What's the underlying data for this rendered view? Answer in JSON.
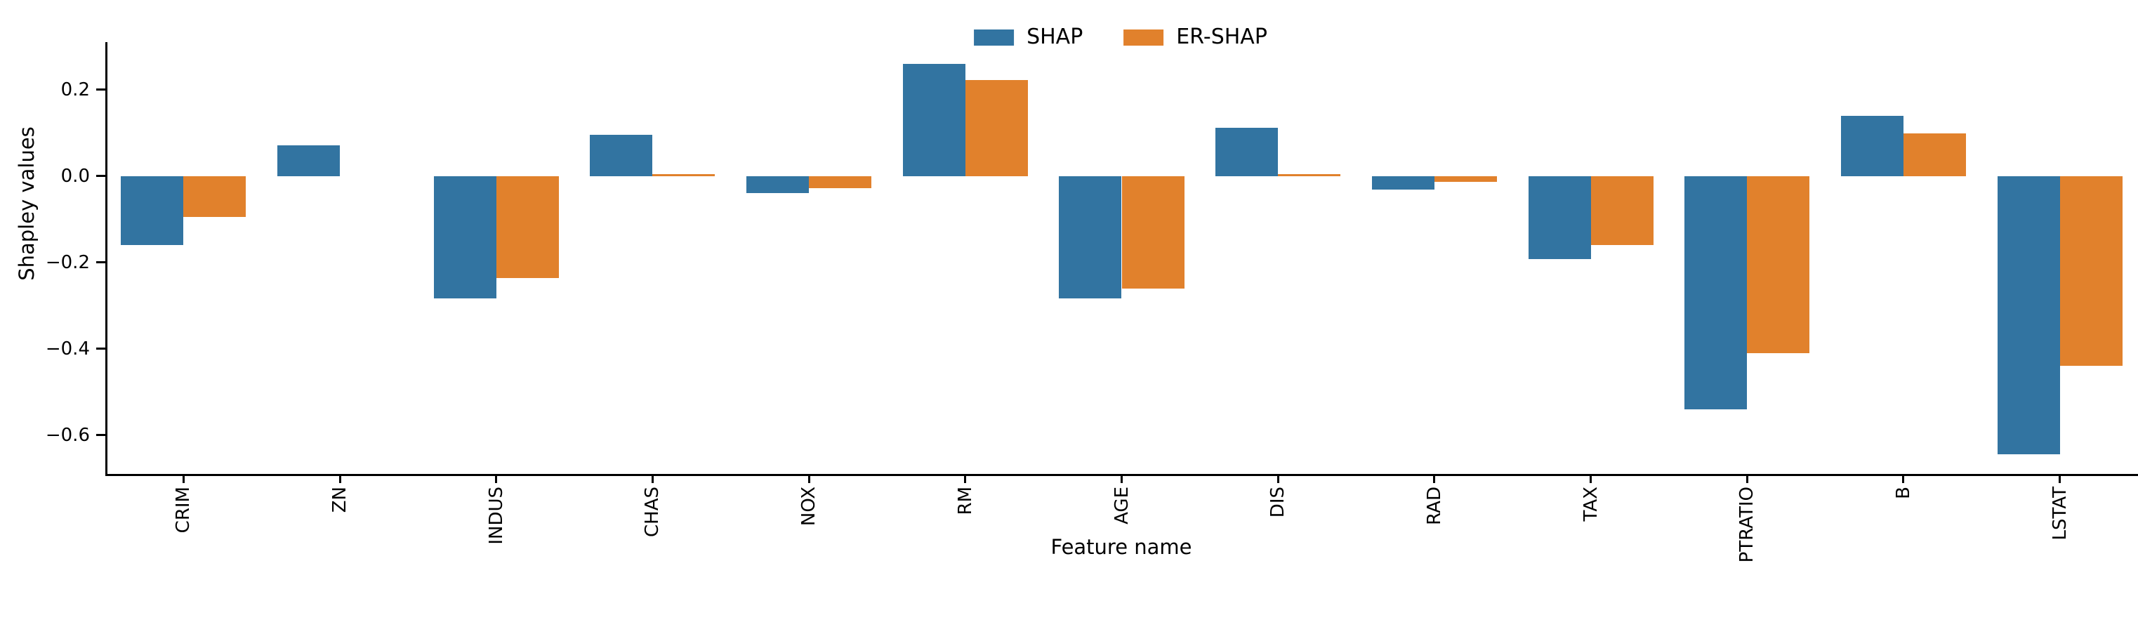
{
  "legend": {
    "items": [
      {
        "label": "SHAP",
        "color": "#3274a1"
      },
      {
        "label": "ER-SHAP",
        "color": "#e1812c"
      }
    ]
  },
  "axes": {
    "ylabel": "Shapley values",
    "xlabel": "Feature name",
    "ytick_labels": [
      "0.2",
      "0.0",
      "−0.2",
      "−0.4",
      "−0.6"
    ]
  },
  "chart_data": {
    "type": "bar",
    "title": "",
    "xlabel": "Feature name",
    "ylabel": "Shapley values",
    "categories": [
      "CRIM",
      "ZN",
      "INDUS",
      "CHAS",
      "NOX",
      "RM",
      "AGE",
      "DIS",
      "RAD",
      "TAX",
      "PTRATIO",
      "B",
      "LSTAT"
    ],
    "series": [
      {
        "name": "SHAP",
        "color": "#3274a1",
        "values": [
          -0.16,
          0.071,
          -0.283,
          0.096,
          -0.04,
          0.26,
          -0.284,
          0.111,
          -0.031,
          -0.192,
          -0.54,
          0.139,
          -0.645
        ]
      },
      {
        "name": "ER-SHAP",
        "color": "#e1812c",
        "values": [
          -0.095,
          0.0,
          -0.236,
          0.004,
          -0.028,
          0.222,
          -0.26,
          0.005,
          -0.013,
          -0.16,
          -0.41,
          0.098,
          -0.44
        ]
      }
    ],
    "yticks": [
      0.2,
      0.0,
      -0.2,
      -0.4,
      -0.6
    ],
    "ylim": [
      -0.69,
      0.31
    ],
    "grid": false,
    "legend_position": "top-center",
    "bar_group_width_fraction": 0.8,
    "xtick_label_rotation_deg": 90
  }
}
